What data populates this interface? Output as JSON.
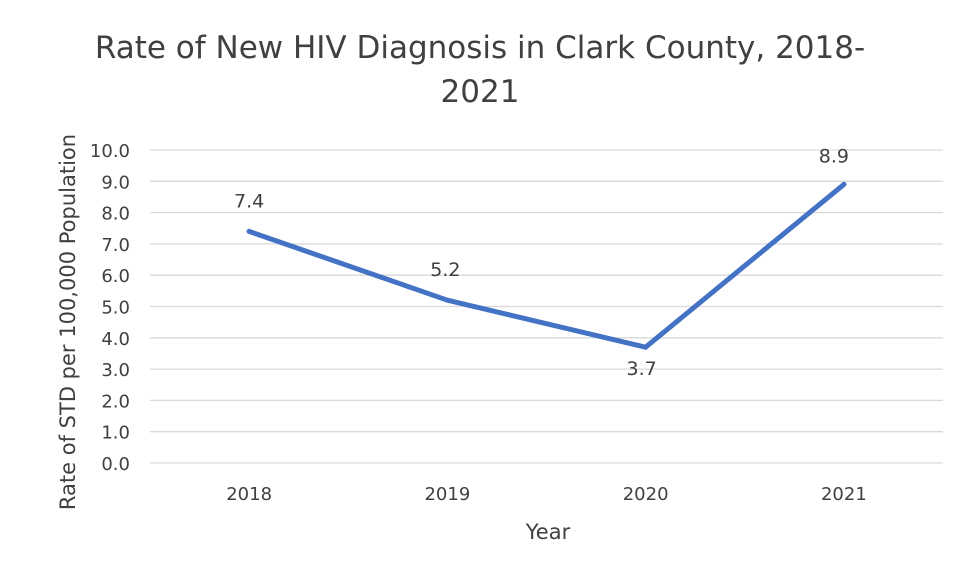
{
  "chart_data": {
    "type": "line",
    "title": "Rate of New HIV Diagnosis in Clark County, 2018-2021",
    "xlabel": "Year",
    "ylabel": "Rate of STD per 100,000 Population",
    "categories": [
      "2018",
      "2019",
      "2020",
      "2021"
    ],
    "series": [
      {
        "values": [
          7.4,
          5.2,
          3.7,
          8.9
        ],
        "labels": [
          "7.4",
          "5.2",
          "3.7",
          "8.9"
        ]
      }
    ],
    "ylim": [
      0,
      10
    ],
    "yticks": [
      "0.0",
      "1.0",
      "2.0",
      "3.0",
      "4.0",
      "5.0",
      "6.0",
      "7.0",
      "8.0",
      "9.0",
      "10.0"
    ],
    "grid": true,
    "legend": "none",
    "line_color": "#4472C4",
    "grid_color": "#d9d9d9"
  }
}
